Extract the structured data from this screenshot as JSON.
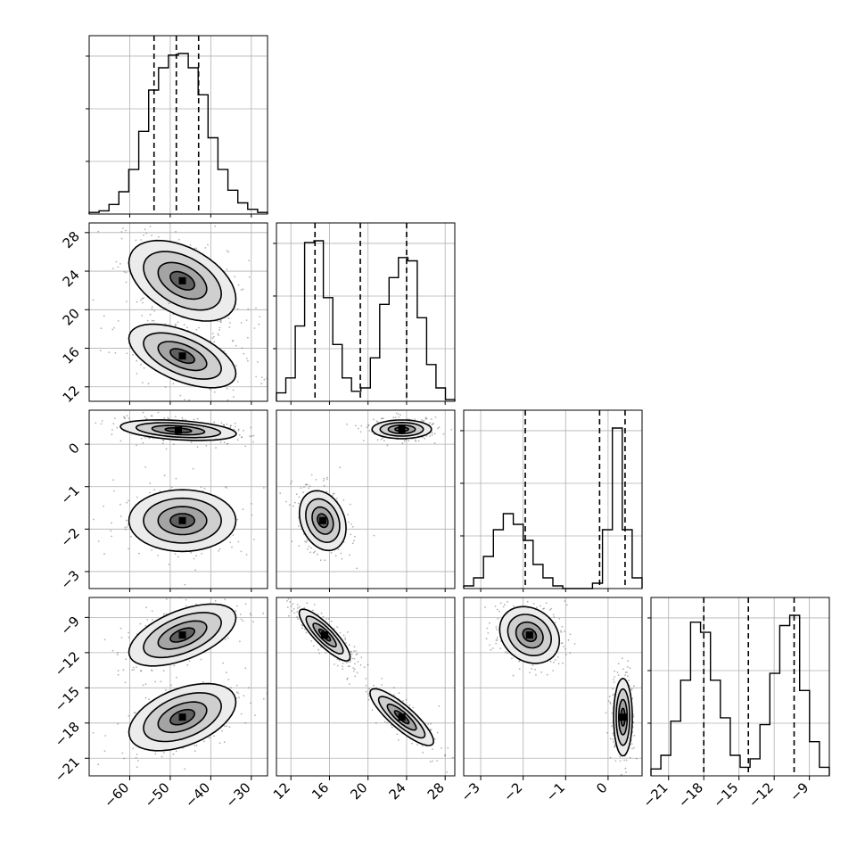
{
  "chart_data": {
    "type": "corner",
    "params": [
      {
        "id": "p1",
        "range": [
          -70,
          -26
        ],
        "ticks": [
          -60,
          -50,
          -40,
          -30
        ],
        "tick_labels": [
          "−60",
          "−50",
          "−40",
          "−30"
        ],
        "quantiles": [
          -54,
          -48.5,
          -43
        ],
        "hist": [
          1,
          2,
          6,
          14,
          28,
          52,
          78,
          92,
          100,
          101,
          92,
          75,
          48,
          28,
          15,
          7,
          3,
          1
        ]
      },
      {
        "id": "p2",
        "range": [
          10.5,
          29
        ],
        "ticks": [
          12,
          16,
          20,
          24,
          28
        ],
        "tick_labels": [
          "12",
          "16",
          "20",
          "24",
          "28"
        ],
        "quantiles": [
          14.5,
          19.2,
          24
        ],
        "hist": [
          5,
          14,
          45,
          95,
          96,
          62,
          34,
          14,
          6,
          8,
          26,
          58,
          74,
          86,
          84,
          50,
          22,
          8,
          1
        ]
      },
      {
        "id": "p3",
        "range": [
          -3.4,
          0.8
        ],
        "ticks": [
          -3,
          -2,
          -1,
          0
        ],
        "tick_labels": [
          "−3",
          "−2",
          "−1",
          "0"
        ],
        "quantiles": [
          -1.95,
          -0.2,
          0.4
        ],
        "hist": [
          1,
          4,
          12,
          22,
          28,
          24,
          18,
          9,
          4,
          1,
          0,
          0,
          0,
          2,
          22,
          60,
          22,
          4
        ]
      },
      {
        "id": "p4",
        "range": [
          -22.5,
          -7.3
        ],
        "ticks": [
          -21,
          -18,
          -15,
          -12,
          -9
        ],
        "tick_labels": [
          "−21",
          "−18",
          "−15",
          "−12",
          "−9"
        ],
        "quantiles": [
          -18,
          -14.2,
          -10.3
        ],
        "hist": [
          4,
          12,
          32,
          56,
          90,
          84,
          56,
          34,
          12,
          5,
          10,
          30,
          60,
          88,
          94,
          50,
          20,
          5
        ]
      }
    ],
    "panels_2d": [
      {
        "row": 1,
        "col": 0,
        "clusters": [
          {
            "cx": -47,
            "cy": 23,
            "sx": 6,
            "sy": 1.9,
            "rho": -0.45
          },
          {
            "cx": -47,
            "cy": 15.2,
            "sx": 6,
            "sy": 1.5,
            "rho": -0.55
          }
        ]
      },
      {
        "row": 2,
        "col": 0,
        "clusters": [
          {
            "cx": -48,
            "cy": 0.33,
            "sx": 6.5,
            "sy": 0.11,
            "rho": -0.35
          },
          {
            "cx": -47,
            "cy": -1.8,
            "sx": 6,
            "sy": 0.33,
            "rho": 0
          }
        ]
      },
      {
        "row": 2,
        "col": 1,
        "clusters": [
          {
            "cx": 23.5,
            "cy": 0.35,
            "sx": 1.4,
            "sy": 0.1,
            "rho": 0
          },
          {
            "cx": 15.3,
            "cy": -1.8,
            "sx": 1.1,
            "sy": 0.32,
            "rho": -0.25
          }
        ]
      },
      {
        "row": 3,
        "col": 0,
        "clusters": [
          {
            "cx": -47,
            "cy": -10.5,
            "sx": 6,
            "sy": 1.2,
            "rho": 0.55
          },
          {
            "cx": -47,
            "cy": -17.5,
            "sx": 6,
            "sy": 1.3,
            "rho": 0.45
          }
        ]
      },
      {
        "row": 3,
        "col": 1,
        "clusters": [
          {
            "cx": 15.5,
            "cy": -10.5,
            "sx": 1.2,
            "sy": 1.0,
            "rho": -0.85
          },
          {
            "cx": 23.5,
            "cy": -17.5,
            "sx": 1.5,
            "sy": 1.1,
            "rho": -0.85
          }
        ]
      },
      {
        "row": 3,
        "col": 2,
        "clusters": [
          {
            "cx": -1.85,
            "cy": -10.5,
            "sx": 0.32,
            "sy": 1.1,
            "rho": -0.2
          },
          {
            "cx": 0.35,
            "cy": -17.5,
            "sx": 0.1,
            "sy": 1.5,
            "rho": 0
          }
        ]
      }
    ],
    "grid": true
  }
}
